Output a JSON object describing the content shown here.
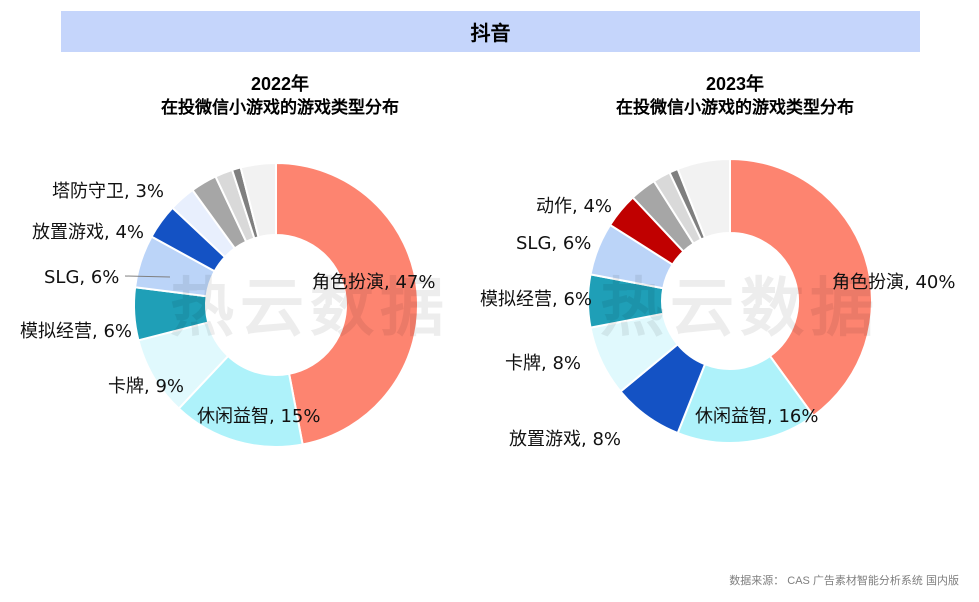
{
  "banner": {
    "title": "抖音"
  },
  "watermark": {
    "text": "热云数据"
  },
  "footer": {
    "source": "数据来源： CAS 广告素材智能分析系统 国内版"
  },
  "chart_data": [
    {
      "type": "pie",
      "variant": "donut",
      "title": "2022年",
      "subtitle": "在投微信小游戏的游戏类型分布",
      "slices": [
        {
          "label": "角色扮演",
          "value": 47,
          "color": "#fd8470",
          "text": "角色扮演, 47%"
        },
        {
          "label": "休闲益智",
          "value": 15,
          "color": "#aef2fa",
          "text": "休闲益智, 15%"
        },
        {
          "label": "卡牌",
          "value": 9,
          "color": "#e0f9fd",
          "text": "卡牌, 9%"
        },
        {
          "label": "模拟经营",
          "value": 6,
          "color": "#1f9fb7",
          "text": "模拟经营, 6%"
        },
        {
          "label": "SLG",
          "value": 6,
          "color": "#bbd4f8",
          "text": "SLG, 6%"
        },
        {
          "label": "放置游戏",
          "value": 4,
          "color": "#1452c4",
          "text": "放置游戏, 4%"
        },
        {
          "label": "塔防守卫",
          "value": 3,
          "color": "#e8effd",
          "text": "塔防守卫, 3%"
        },
        {
          "label": "",
          "value": 3,
          "color": "#a6a6a6",
          "text": ""
        },
        {
          "label": "",
          "value": 2,
          "color": "#d9d9d9",
          "text": ""
        },
        {
          "label": "",
          "value": 1,
          "color": "#7f7f7f",
          "text": ""
        },
        {
          "label": "",
          "value": 4,
          "color": "#f2f2f2",
          "text": ""
        }
      ]
    },
    {
      "type": "pie",
      "variant": "donut",
      "title": "2023年",
      "subtitle": "在投微信小游戏的游戏类型分布",
      "slices": [
        {
          "label": "角色扮演",
          "value": 40,
          "color": "#fd8470",
          "text": "角色扮演, 40%"
        },
        {
          "label": "休闲益智",
          "value": 16,
          "color": "#aef2fa",
          "text": "休闲益智, 16%"
        },
        {
          "label": "放置游戏",
          "value": 8,
          "color": "#1452c4",
          "text": "放置游戏, 8%"
        },
        {
          "label": "卡牌",
          "value": 8,
          "color": "#e0f9fd",
          "text": "卡牌, 8%"
        },
        {
          "label": "模拟经营",
          "value": 6,
          "color": "#1f9fb7",
          "text": "模拟经营, 6%"
        },
        {
          "label": "SLG",
          "value": 6,
          "color": "#bbd4f8",
          "text": "SLG, 6%"
        },
        {
          "label": "动作",
          "value": 4,
          "color": "#c00000",
          "text": "动作, 4%"
        },
        {
          "label": "",
          "value": 3,
          "color": "#a6a6a6",
          "text": ""
        },
        {
          "label": "",
          "value": 2,
          "color": "#d9d9d9",
          "text": ""
        },
        {
          "label": "",
          "value": 1,
          "color": "#7f7f7f",
          "text": ""
        },
        {
          "label": "",
          "value": 6,
          "color": "#f2f2f2",
          "text": ""
        }
      ]
    }
  ]
}
